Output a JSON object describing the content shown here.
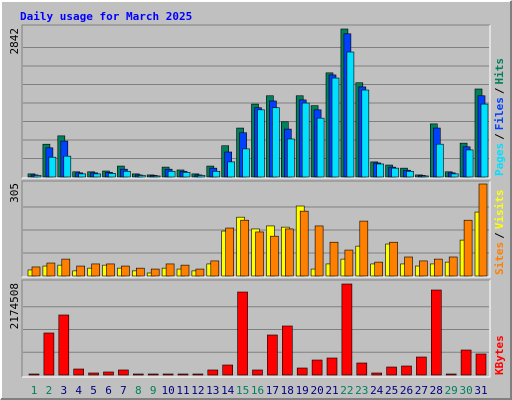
{
  "chart_data": [
    {
      "type": "bar",
      "title": "Daily usage for March 2025",
      "legend_separator": "/",
      "ylim": [
        0,
        2842
      ],
      "yticks": [
        2842
      ],
      "series": [
        {
          "name": "Hits",
          "color": "#00805c",
          "values": [
            60,
            630,
            790,
            100,
            100,
            115,
            210,
            60,
            40,
            190,
            135,
            60,
            210,
            600,
            940,
            1400,
            1560,
            1060,
            1560,
            1370,
            2000,
            2842,
            1810,
            290,
            230,
            170,
            40,
            1020,
            100,
            650,
            1690
          ]
        },
        {
          "name": "Files",
          "color": "#0040ff",
          "values": [
            40,
            560,
            690,
            80,
            80,
            90,
            150,
            40,
            30,
            150,
            110,
            40,
            170,
            480,
            850,
            1330,
            1460,
            920,
            1480,
            1290,
            1960,
            2750,
            1730,
            270,
            190,
            130,
            30,
            940,
            80,
            580,
            1560
          ]
        },
        {
          "name": "Pages",
          "color": "#00e0ff",
          "values": [
            30,
            380,
            400,
            60,
            60,
            70,
            110,
            30,
            20,
            110,
            90,
            30,
            110,
            290,
            540,
            1290,
            1330,
            730,
            1420,
            1130,
            1900,
            2400,
            1670,
            250,
            170,
            110,
            20,
            630,
            60,
            520,
            1400
          ]
        }
      ]
    },
    {
      "type": "bar",
      "legend_separator": "/",
      "ylim": [
        0,
        305
      ],
      "yticks": [
        305
      ],
      "series": [
        {
          "name": "Visits",
          "color": "#ffff00",
          "values": [
            20,
            33,
            36,
            17,
            26,
            36,
            26,
            17,
            10,
            26,
            23,
            17,
            40,
            149,
            195,
            156,
            166,
            162,
            232,
            23,
            40,
            56,
            99,
            40,
            106,
            40,
            33,
            40,
            46,
            119,
            212
          ]
        },
        {
          "name": "Sites",
          "color": "#ff8000",
          "values": [
            30,
            43,
            56,
            33,
            40,
            40,
            33,
            26,
            23,
            40,
            36,
            23,
            50,
            159,
            185,
            146,
            132,
            156,
            215,
            166,
            112,
            86,
            182,
            46,
            112,
            63,
            50,
            56,
            63,
            185,
            305
          ]
        }
      ]
    },
    {
      "type": "bar",
      "ylim": [
        0,
        2174508
      ],
      "yticks": [
        2174508
      ],
      "categories": [
        "1",
        "2",
        "3",
        "4",
        "5",
        "6",
        "7",
        "8",
        "9",
        "10",
        "11",
        "12",
        "13",
        "14",
        "15",
        "16",
        "17",
        "18",
        "19",
        "20",
        "21",
        "22",
        "23",
        "24",
        "25",
        "26",
        "27",
        "28",
        "29",
        "30",
        "31"
      ],
      "category_colors": [
        "#00805c",
        "#00805c",
        "#000080",
        "#000080",
        "#000080",
        "#000080",
        "#000080",
        "#00805c",
        "#00805c",
        "#000080",
        "#000080",
        "#000080",
        "#000080",
        "#000080",
        "#00805c",
        "#00805c",
        "#000080",
        "#000080",
        "#000080",
        "#000080",
        "#000080",
        "#00805c",
        "#00805c",
        "#000080",
        "#000080",
        "#000080",
        "#000080",
        "#000080",
        "#00805c",
        "#00805c",
        "#000080"
      ],
      "series": [
        {
          "name": "KBytes",
          "color": "#ff0000",
          "values": [
            24000,
            1004000,
            1434000,
            143000,
            48000,
            72000,
            120000,
            24000,
            24000,
            24000,
            24000,
            24000,
            120000,
            239000,
            1983000,
            120000,
            956000,
            1171000,
            167000,
            358000,
            406000,
            2174508,
            287000,
            48000,
            191000,
            215000,
            430000,
            2031000,
            24000,
            597000,
            502000
          ]
        }
      ]
    }
  ]
}
